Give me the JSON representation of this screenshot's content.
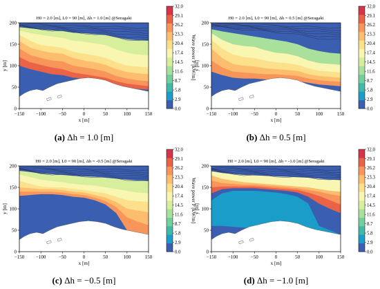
{
  "colormap": [
    "#3a5fb0",
    "#1a9ec9",
    "#3fb9a8",
    "#74cf9f",
    "#a8e09c",
    "#d7ef9c",
    "#f8f6b0",
    "#fde08c",
    "#fdbd6e",
    "#f8955a",
    "#eb6346",
    "#d5344a"
  ],
  "colors": {
    "land": "#ffffff",
    "frame": "#000000",
    "contour": "#2c3560"
  },
  "chart_data": [
    {
      "type": "heatmap",
      "title": "H0 = 2.0 [m], L0 = 90 [m], Δh = 1.0 [m] @Seragaki",
      "xlabel": "x [m]",
      "ylabel": "y [m]",
      "cbar_label": "Wave power P [kW/m]",
      "xlim": [
        -150,
        150
      ],
      "ylim": [
        0,
        200
      ],
      "xticks": [
        "−150",
        "−100",
        "−50",
        "0",
        "50",
        "100",
        "150"
      ],
      "yticks": [
        "0",
        "50",
        "100",
        "150",
        "200"
      ],
      "cbar_ticks": [
        "0.0",
        "2.9",
        "5.8",
        "8.7",
        "11.6",
        "14.5",
        "17.4",
        "20.4",
        "23.3",
        "26.2",
        "29.1",
        "32.0"
      ],
      "caption": {
        "letter": "(a)",
        "text": "Δh = 1.0 [m]"
      },
      "x": [
        -150,
        -125,
        -100,
        -75,
        -50,
        -25,
        0,
        25,
        50,
        75,
        100,
        125,
        150
      ],
      "profile": {
        "top": [
          200,
          200,
          200,
          200,
          200,
          200,
          200,
          200,
          200,
          200,
          200,
          200,
          200
        ],
        "y_band_1": [
          182,
          176,
          172,
          168,
          165,
          158,
          156,
          152,
          148,
          138,
          130,
          126,
          124
        ],
        "y_band_2": [
          172,
          158,
          148,
          145,
          142,
          132,
          128,
          124,
          118,
          108,
          100,
          98,
          96
        ],
        "y_band_3": [
          158,
          142,
          135,
          130,
          128,
          118,
          112,
          108,
          102,
          92,
          85,
          82,
          80
        ],
        "y_band_4": [
          140,
          125,
          118,
          112,
          110,
          100,
          96,
          92,
          86,
          76,
          70,
          66,
          64
        ],
        "y_band_5": [
          120,
          108,
          102,
          96,
          92,
          84,
          80,
          76,
          72,
          64,
          58,
          55,
          52
        ],
        "y_band_6": [
          100,
          92,
          86,
          80,
          78,
          72,
          70,
          66,
          62,
          56,
          50,
          46,
          44
        ]
      },
      "band_values": [
        14.5,
        17.4,
        20.4,
        23.3,
        26.2,
        29.1
      ]
    },
    {
      "type": "heatmap",
      "title": "H0 = 2.0 [m], L0 = 90 [m], Δh = 0.5 [m] @Seragaki",
      "xlabel": "x [m]",
      "ylabel": "y [m]",
      "cbar_label": "Wave power P [kW/m]",
      "xlim": [
        -150,
        150
      ],
      "ylim": [
        0,
        200
      ],
      "xticks": [
        "−150",
        "−100",
        "−50",
        "0",
        "50",
        "100",
        "150"
      ],
      "yticks": [
        "0",
        "50",
        "100",
        "150",
        "200"
      ],
      "cbar_ticks": [
        "0.0",
        "2.9",
        "5.8",
        "8.7",
        "11.6",
        "14.5",
        "17.4",
        "20.4",
        "23.3",
        "26.2",
        "29.1",
        "32.0"
      ],
      "caption": {
        "letter": "(b)",
        "text": "Δh = 0.5 [m]"
      },
      "x": [
        -150,
        -125,
        -100,
        -75,
        -50,
        -25,
        0,
        25,
        50,
        75,
        100,
        125,
        150
      ],
      "profile": {
        "top": [
          200,
          200,
          200,
          200,
          200,
          200,
          200,
          200,
          200,
          200,
          200,
          200,
          200
        ],
        "y_band_1": [
          185,
          180,
          176,
          172,
          168,
          164,
          160,
          156,
          150,
          140,
          134,
          130,
          128
        ],
        "y_band_2": [
          176,
          160,
          150,
          146,
          144,
          136,
          130,
          128,
          122,
          112,
          106,
          104,
          102
        ],
        "y_band_3": [
          160,
          140,
          126,
          120,
          118,
          112,
          108,
          106,
          102,
          94,
          88,
          86,
          84
        ],
        "y_band_4": [
          140,
          118,
          104,
          100,
          98,
          94,
          92,
          90,
          88,
          80,
          76,
          74,
          72
        ],
        "y_band_5": [
          112,
          96,
          86,
          84,
          82,
          80,
          80,
          78,
          76,
          70,
          66,
          64,
          62
        ],
        "y_band_6": [
          86,
          78,
          72,
          70,
          70,
          68,
          68,
          66,
          64,
          60,
          56,
          54,
          52
        ]
      },
      "band_values": [
        0.0,
        11.6,
        17.4,
        20.4,
        23.3,
        26.2
      ]
    },
    {
      "type": "heatmap",
      "title": "H0 = 2.0 [m], L0 = 90 [m], Δh = -0.5 [m] @Seragaki",
      "xlabel": "x [m]",
      "ylabel": "y [m]",
      "cbar_label": "Wave power P [kW/m]",
      "xlim": [
        -150,
        150
      ],
      "ylim": [
        0,
        200
      ],
      "xticks": [
        "−150",
        "−100",
        "−50",
        "0",
        "50",
        "100",
        "150"
      ],
      "yticks": [
        "0",
        "50",
        "100",
        "150",
        "200"
      ],
      "cbar_ticks": [
        "0.0",
        "2.9",
        "5.8",
        "8.7",
        "11.6",
        "14.5",
        "17.4",
        "20.4",
        "23.3",
        "26.2",
        "29.1",
        "32.0"
      ],
      "caption": {
        "letter": "(c)",
        "text": "Δh = −0.5 [m]"
      },
      "x": [
        -150,
        -125,
        -100,
        -75,
        -50,
        -25,
        0,
        25,
        50,
        75,
        100,
        125,
        150
      ],
      "profile": {
        "top": [
          200,
          200,
          200,
          200,
          200,
          200,
          200,
          200,
          200,
          200,
          200,
          200,
          200
        ],
        "y_band_1": [
          180,
          174,
          168,
          165,
          162,
          158,
          156,
          154,
          150,
          146,
          142,
          138,
          136
        ],
        "y_band_2": [
          165,
          158,
          152,
          150,
          150,
          146,
          144,
          140,
          136,
          128,
          120,
          118,
          116
        ],
        "y_band_3": [
          150,
          148,
          146,
          146,
          144,
          140,
          138,
          132,
          126,
          116,
          100,
          96,
          92
        ],
        "y_band_4": [
          140,
          140,
          140,
          140,
          138,
          134,
          132,
          126,
          118,
          104,
          80,
          70,
          62
        ],
        "y_band_5": [
          130,
          132,
          134,
          134,
          132,
          128,
          126,
          120,
          110,
          90,
          50,
          40,
          20
        ],
        "y_band_6": [
          120,
          124,
          128,
          128,
          126,
          122,
          120,
          112,
          100,
          70,
          20,
          10,
          0
        ]
      },
      "band_values": [
        14.5,
        17.4,
        20.4,
        23.3,
        26.2,
        0.0
      ]
    },
    {
      "type": "heatmap",
      "title": "H0 = 2.0 [m], L0 = 90 [m], Δh = -1.0 [m] @Seragaki",
      "xlabel": "x [m]",
      "ylabel": "y [m]",
      "cbar_label": "Wave power P [kW/m]",
      "xlim": [
        -150,
        150
      ],
      "ylim": [
        0,
        200
      ],
      "xticks": [
        "−150",
        "−100",
        "−50",
        "0",
        "50",
        "100",
        "150"
      ],
      "yticks": [
        "0",
        "50",
        "100",
        "150",
        "200"
      ],
      "cbar_ticks": [
        "0.0",
        "2.9",
        "5.8",
        "8.7",
        "11.6",
        "14.5",
        "17.4",
        "20.4",
        "23.3",
        "26.2",
        "29.1",
        "32.0"
      ],
      "caption": {
        "letter": "(d)",
        "text": "Δh = −1.0 [m]"
      },
      "x": [
        -150,
        -125,
        -100,
        -75,
        -50,
        -25,
        0,
        25,
        50,
        75,
        100,
        125,
        150
      ],
      "profile": {
        "top": [
          200,
          200,
          200,
          200,
          200,
          200,
          200,
          200,
          200,
          200,
          200,
          200,
          200
        ],
        "y_band_1": [
          178,
          170,
          166,
          162,
          160,
          158,
          156,
          154,
          152,
          150,
          146,
          142,
          140
        ],
        "y_band_2": [
          166,
          160,
          158,
          156,
          156,
          154,
          152,
          150,
          148,
          144,
          140,
          134,
          130
        ],
        "y_band_3": [
          150,
          152,
          152,
          152,
          152,
          150,
          148,
          146,
          144,
          138,
          130,
          120,
          110
        ],
        "y_band_4": [
          136,
          146,
          148,
          148,
          148,
          146,
          144,
          142,
          138,
          128,
          112,
          100,
          90
        ],
        "y_band_5": [
          120,
          136,
          142,
          142,
          142,
          140,
          138,
          134,
          128,
          112,
          60,
          50,
          40
        ],
        "y_band_6": [
          60,
          60,
          58,
          56,
          54,
          52,
          52,
          50,
          50,
          48,
          46,
          44,
          42
        ]
      },
      "band_values": [
        17.4,
        23.3,
        26.2,
        29.1,
        0.0,
        2.9
      ]
    }
  ]
}
